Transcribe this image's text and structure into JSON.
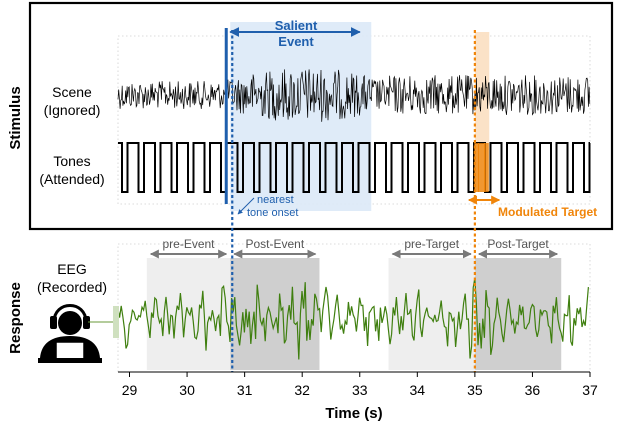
{
  "stimulus_label": "Stimulus",
  "response_label": "Response",
  "scene_label": [
    "Scene",
    "(Ignored)"
  ],
  "tones_label": [
    "Tones",
    "(Attended)"
  ],
  "eeg_label": [
    "EEG",
    "(Recorded)"
  ],
  "salient_event_label": [
    "Salient",
    "Event"
  ],
  "nearest_tone_label": [
    "nearest",
    "tone onset"
  ],
  "modulated_target_label": "Modulated Target",
  "windows": {
    "pre_event": "pre-Event",
    "post_event": "Post-Event",
    "pre_target": "pre-Target",
    "post_target": "Post-Target"
  },
  "axis": {
    "xlabel": "Time (s)",
    "ticks": [
      "29",
      "30",
      "31",
      "32",
      "33",
      "34",
      "35",
      "36",
      "37"
    ],
    "range": [
      28.8,
      37
    ]
  },
  "events": {
    "salient_event_time": 30.75,
    "salient_event_end": 33.2,
    "target_time": 35.0,
    "target_end": 35.25,
    "pre_event_window": [
      29.3,
      30.75
    ],
    "post_event_window": [
      30.75,
      32.3
    ],
    "pre_target_window": [
      33.5,
      35.0
    ],
    "post_target_window": [
      35.0,
      36.5
    ]
  },
  "colors": {
    "salient_blue": "#1f5fad",
    "event_shade": "#dbe9f7",
    "target_orange": "#f0850a",
    "target_shade": "#fbe0c4",
    "eeg_green": "#3f7f0f",
    "window_light": "#eeeeee",
    "window_dark": "#cfcfcf",
    "arrow_gray": "#7a7a7a"
  },
  "icons": [
    "listener-headphones-icon"
  ]
}
